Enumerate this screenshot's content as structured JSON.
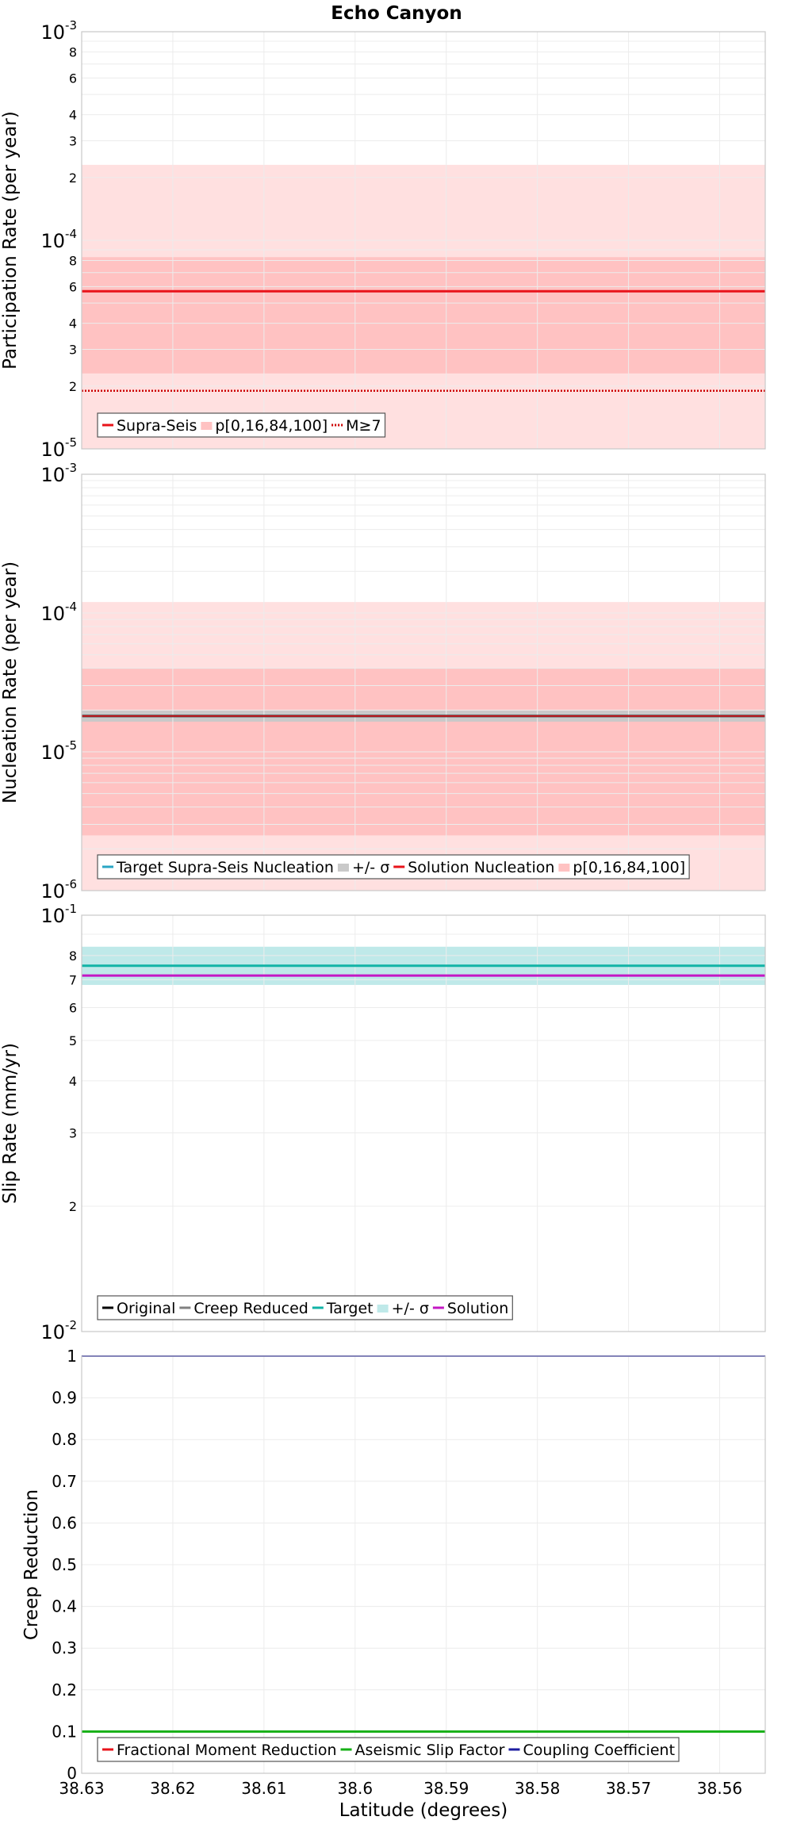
{
  "title": "Echo Canyon",
  "x_axis": {
    "label": "Latitude (degrees)",
    "range": [
      38.63,
      38.555
    ],
    "ticks": [
      38.63,
      38.62,
      38.61,
      38.6,
      38.59,
      38.58,
      38.57,
      38.56
    ],
    "tick_labels": [
      "38.63",
      "38.62",
      "38.61",
      "38.6",
      "38.59",
      "38.58",
      "38.57",
      "38.56"
    ]
  },
  "colors": {
    "band_outer": "#ffe0e0",
    "band_inner": "#ffc2c2",
    "red": "#e8131a",
    "sigma_gray": "#c9c9c9",
    "cyan_band": "#bfe9e9",
    "target": "#11b3a6",
    "solution": "#c418c4",
    "aseismic": "#16b016",
    "coupling": "#1c1ca0",
    "grid": "#ececec",
    "frame": "#c8c8c8"
  },
  "chart_data": [
    {
      "type": "line",
      "ylabel": "Participation Rate (per year)",
      "yscale": "log",
      "ylim": [
        1e-05,
        0.001
      ],
      "decade_labels": [
        {
          "value": 0.001,
          "base": "10",
          "exp": "-3"
        },
        {
          "value": 0.0001,
          "base": "10",
          "exp": "-4"
        },
        {
          "value": 1e-05,
          "base": "10",
          "exp": "-5"
        }
      ],
      "minor_labels": [
        {
          "value": 0.0008,
          "label": "8"
        },
        {
          "value": 0.0006,
          "label": "6"
        },
        {
          "value": 0.0004,
          "label": "4"
        },
        {
          "value": 0.0003,
          "label": "3"
        },
        {
          "value": 0.0002,
          "label": "2"
        },
        {
          "value": 8e-05,
          "label": "8"
        },
        {
          "value": 6e-05,
          "label": "6"
        },
        {
          "value": 4e-05,
          "label": "4"
        },
        {
          "value": 3e-05,
          "label": "3"
        },
        {
          "value": 2e-05,
          "label": "2"
        }
      ],
      "bands": [
        {
          "name": "p0-100",
          "low": 1e-05,
          "high": 0.00023,
          "color": "#ffe0e0"
        },
        {
          "name": "p16-84",
          "low": 2.3e-05,
          "high": 8.3e-05,
          "color": "#ffc2c2"
        }
      ],
      "lines": [
        {
          "name": "Supra-Seis",
          "value": 5.7e-05,
          "color": "#e8131a",
          "width": 3,
          "dash": ""
        },
        {
          "name": "M≥7",
          "value": 1.9e-05,
          "color": "#cc0000",
          "width": 2.5,
          "dash": "2,2"
        }
      ],
      "legend": [
        {
          "label": "Supra-Seis",
          "kind": "line",
          "color": "#e8131a",
          "dash": ""
        },
        {
          "label": "p[0,16,84,100]",
          "kind": "band",
          "color": "#ffc2c2",
          "dash": ""
        },
        {
          "label": "M≥7",
          "kind": "line",
          "color": "#cc0000",
          "dash": "2,2"
        }
      ]
    },
    {
      "type": "line",
      "ylabel": "Nucleation Rate (per year)",
      "yscale": "log",
      "ylim": [
        1e-06,
        0.001
      ],
      "decade_labels": [
        {
          "value": 0.001,
          "base": "10",
          "exp": "-3"
        },
        {
          "value": 0.0001,
          "base": "10",
          "exp": "-4"
        },
        {
          "value": 1e-05,
          "base": "10",
          "exp": "-5"
        },
        {
          "value": 1e-06,
          "base": "10",
          "exp": "-6"
        }
      ],
      "minor_labels": [],
      "bands": [
        {
          "name": "p0-100",
          "low": 1e-06,
          "high": 0.00012,
          "color": "#ffe0e0"
        },
        {
          "name": "p16-84",
          "low": 2.5e-06,
          "high": 4e-05,
          "color": "#ffc2c2"
        },
        {
          "name": "sigma",
          "low": 1.65e-05,
          "high": 1.98e-05,
          "color": "#c9c9c9"
        }
      ],
      "lines": [
        {
          "name": "Target Supra-Seis Nucleation",
          "value": 1.81e-05,
          "color": "#333333",
          "width": 3,
          "dash": ""
        },
        {
          "name": "Solution Nucleation",
          "value": 1.81e-05,
          "color": "#e8131a",
          "width": 1.5,
          "dash": ""
        }
      ],
      "legend": [
        {
          "label": "Target Supra-Seis Nucleation",
          "kind": "line",
          "color": "#2aa6c4",
          "dash": ""
        },
        {
          "label": "+/- σ",
          "kind": "band",
          "color": "#c9c9c9",
          "dash": ""
        },
        {
          "label": "Solution Nucleation",
          "kind": "line",
          "color": "#e8131a",
          "dash": ""
        },
        {
          "label": "p[0,16,84,100]",
          "kind": "band",
          "color": "#ffc2c2",
          "dash": ""
        }
      ]
    },
    {
      "type": "line",
      "ylabel": "Slip Rate (mm/yr)",
      "yscale": "log",
      "ylim": [
        0.01,
        0.1
      ],
      "decade_labels": [
        {
          "value": 0.1,
          "base": "10",
          "exp": "-1"
        },
        {
          "value": 0.01,
          "base": "10",
          "exp": "-2"
        }
      ],
      "minor_labels": [
        {
          "value": 0.08,
          "label": "8"
        },
        {
          "value": 0.07,
          "label": "7"
        },
        {
          "value": 0.06,
          "label": "6"
        },
        {
          "value": 0.05,
          "label": "5"
        },
        {
          "value": 0.04,
          "label": "4"
        },
        {
          "value": 0.03,
          "label": "3"
        },
        {
          "value": 0.02,
          "label": "2"
        }
      ],
      "bands": [
        {
          "name": "sigma",
          "low": 0.068,
          "high": 0.084,
          "color": "#bfe9e9"
        }
      ],
      "lines": [
        {
          "name": "Target",
          "value": 0.0756,
          "color": "#11b3a6",
          "width": 3,
          "dash": ""
        },
        {
          "name": "Solution",
          "value": 0.0716,
          "color": "#c418c4",
          "width": 3,
          "dash": ""
        }
      ],
      "legend": [
        {
          "label": "Original",
          "kind": "line",
          "color": "#000000",
          "dash": ""
        },
        {
          "label": "Creep Reduced",
          "kind": "line",
          "color": "#808080",
          "dash": ""
        },
        {
          "label": "Target",
          "kind": "line",
          "color": "#11b3a6",
          "dash": ""
        },
        {
          "label": "+/- σ",
          "kind": "band",
          "color": "#bfe9e9",
          "dash": ""
        },
        {
          "label": "Solution",
          "kind": "line",
          "color": "#c418c4",
          "dash": ""
        }
      ]
    },
    {
      "type": "line",
      "ylabel": "Creep Reduction",
      "yscale": "linear",
      "ylim": [
        0,
        1
      ],
      "yticks": [
        0,
        0.1,
        0.2,
        0.3,
        0.4,
        0.5,
        0.6,
        0.7,
        0.8,
        0.9,
        1
      ],
      "ytick_labels": [
        "0",
        "0.1",
        "0.2",
        "0.3",
        "0.4",
        "0.5",
        "0.6",
        "0.7",
        "0.8",
        "0.9",
        "1"
      ],
      "bands": [],
      "lines": [
        {
          "name": "Aseismic Slip Factor",
          "value": 0.1,
          "color": "#16b016",
          "width": 3,
          "dash": ""
        },
        {
          "name": "Coupling Coefficient",
          "value": 1.0,
          "color": "#1c1ca0",
          "width": 2,
          "dash": ""
        }
      ],
      "legend": [
        {
          "label": "Fractional Moment Reduction",
          "kind": "line",
          "color": "#e8131a",
          "dash": ""
        },
        {
          "label": "Aseismic Slip Factor",
          "kind": "line",
          "color": "#16b016",
          "dash": ""
        },
        {
          "label": "Coupling Coefficient",
          "kind": "line",
          "color": "#1c1ca0",
          "dash": ""
        }
      ]
    }
  ]
}
